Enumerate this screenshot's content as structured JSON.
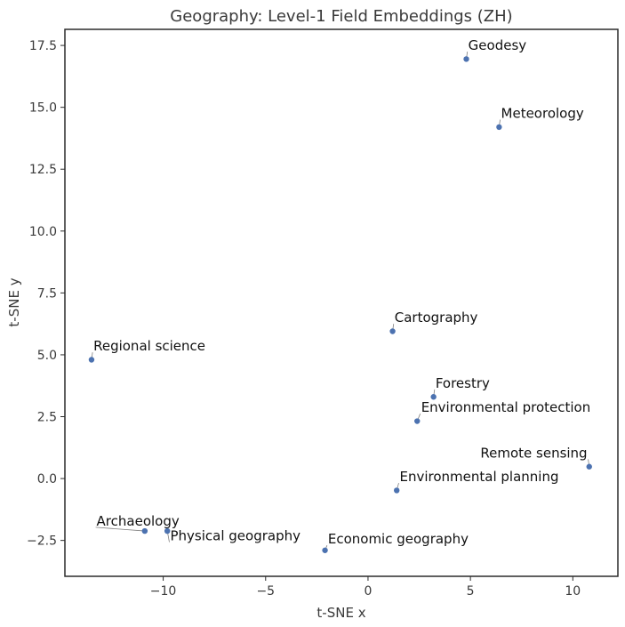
{
  "chart_data": {
    "type": "scatter",
    "title": "Geography: Level-1 Field Embeddings (ZH)",
    "xlabel": "t-SNE x",
    "ylabel": "t-SNE y",
    "xlim": [
      -14.8,
      12.2
    ],
    "ylim": [
      -3.95,
      18.15
    ],
    "xticks": [
      -10,
      -5,
      0,
      5,
      10
    ],
    "xtick_labels": [
      "−10",
      "−5",
      "0",
      "5",
      "10"
    ],
    "yticks": [
      -2.5,
      0.0,
      2.5,
      5.0,
      7.5,
      10.0,
      12.5,
      15.0,
      17.5
    ],
    "ytick_labels": [
      "−2.5",
      "0.0",
      "2.5",
      "5.0",
      "7.5",
      "10.0",
      "12.5",
      "15.0",
      "17.5"
    ],
    "grid": false,
    "point_color": "#4c72b0",
    "points": [
      {
        "label": "Geodesy",
        "x": 4.8,
        "y": 16.95,
        "anchor": "start",
        "dx": 0.05,
        "dy": 0.3
      },
      {
        "label": "Meteorology",
        "x": 6.4,
        "y": 14.2,
        "anchor": "start",
        "dx": 0.05,
        "dy": 0.3
      },
      {
        "label": "Cartography",
        "x": 1.2,
        "y": 5.95,
        "anchor": "start",
        "dx": 0.05,
        "dy": 0.3
      },
      {
        "label": "Regional science",
        "x": -13.5,
        "y": 4.8,
        "anchor": "start",
        "dx": 0.05,
        "dy": 0.3
      },
      {
        "label": "Forestry",
        "x": 3.2,
        "y": 3.3,
        "anchor": "start",
        "dx": 0.05,
        "dy": 0.3
      },
      {
        "label": "Environmental protection",
        "x": 2.4,
        "y": 2.32,
        "anchor": "start",
        "dx": 0.15,
        "dy": 0.3
      },
      {
        "label": "Remote sensing",
        "x": 10.8,
        "y": 0.48,
        "anchor": "end",
        "dx": -0.05,
        "dy": 0.3
      },
      {
        "label": "Environmental planning",
        "x": 1.4,
        "y": -0.48,
        "anchor": "start",
        "dx": 0.1,
        "dy": 0.3
      },
      {
        "label": "Archaeology",
        "x": -10.9,
        "y": -2.12,
        "anchor": "start",
        "dx": -2.4,
        "dy": 0.15
      },
      {
        "label": "Physical geography",
        "x": -9.8,
        "y": -2.12,
        "anchor": "start",
        "dx": 0.1,
        "dy": -0.45
      },
      {
        "label": "Economic geography",
        "x": -2.1,
        "y": -2.9,
        "anchor": "start",
        "dx": 0.1,
        "dy": 0.2
      }
    ]
  }
}
